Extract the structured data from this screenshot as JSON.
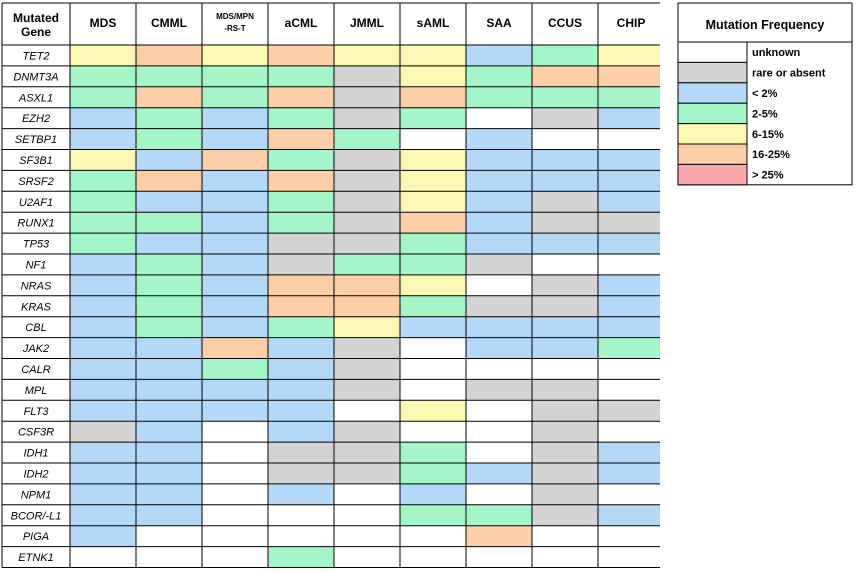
{
  "chart_data": {
    "type": "heatmap",
    "row_header": [
      "Mutated",
      "Gene"
    ],
    "columns": [
      {
        "label": [
          "MDS"
        ]
      },
      {
        "label": [
          "CMML"
        ]
      },
      {
        "label": [
          "MDS/MPN",
          "-RS-T"
        ]
      },
      {
        "label": [
          "aCML"
        ]
      },
      {
        "label": [
          "JMML"
        ]
      },
      {
        "label": [
          "sAML"
        ]
      },
      {
        "label": [
          "SAA"
        ]
      },
      {
        "label": [
          "CCUS"
        ]
      },
      {
        "label": [
          "CHIP"
        ]
      }
    ],
    "rows": [
      {
        "gene": "TET2",
        "values": [
          5,
          6,
          5,
          6,
          5,
          5,
          3,
          4,
          5
        ]
      },
      {
        "gene": "DNMT3A",
        "values": [
          4,
          4,
          4,
          4,
          2,
          5,
          4,
          6,
          6
        ]
      },
      {
        "gene": "ASXL1",
        "values": [
          4,
          6,
          4,
          6,
          2,
          6,
          4,
          4,
          4
        ]
      },
      {
        "gene": "EZH2",
        "values": [
          3,
          4,
          3,
          4,
          2,
          4,
          1,
          2,
          3
        ]
      },
      {
        "gene": "SETBP1",
        "values": [
          3,
          4,
          3,
          6,
          4,
          1,
          3,
          1,
          1
        ]
      },
      {
        "gene": "SF3B1",
        "values": [
          5,
          3,
          6,
          4,
          2,
          5,
          3,
          3,
          3
        ]
      },
      {
        "gene": "SRSF2",
        "values": [
          4,
          6,
          3,
          6,
          2,
          5,
          3,
          3,
          3
        ]
      },
      {
        "gene": "U2AF1",
        "values": [
          4,
          3,
          3,
          4,
          2,
          5,
          3,
          2,
          3
        ]
      },
      {
        "gene": "RUNX1",
        "values": [
          4,
          4,
          3,
          4,
          2,
          6,
          3,
          2,
          2
        ]
      },
      {
        "gene": "TP53",
        "values": [
          4,
          3,
          3,
          2,
          2,
          4,
          3,
          3,
          3
        ]
      },
      {
        "gene": "NF1",
        "values": [
          3,
          4,
          3,
          2,
          4,
          4,
          2,
          1,
          1
        ]
      },
      {
        "gene": "NRAS",
        "values": [
          3,
          4,
          3,
          6,
          6,
          5,
          1,
          2,
          3
        ]
      },
      {
        "gene": "KRAS",
        "values": [
          3,
          4,
          3,
          6,
          6,
          4,
          2,
          2,
          3
        ]
      },
      {
        "gene": "CBL",
        "values": [
          3,
          4,
          3,
          4,
          5,
          3,
          3,
          3,
          3
        ]
      },
      {
        "gene": "JAK2",
        "values": [
          3,
          3,
          6,
          3,
          2,
          1,
          3,
          3,
          4
        ]
      },
      {
        "gene": "CALR",
        "values": [
          3,
          3,
          4,
          3,
          2,
          1,
          1,
          1,
          1
        ]
      },
      {
        "gene": "MPL",
        "values": [
          3,
          3,
          3,
          3,
          2,
          1,
          2,
          2,
          1
        ]
      },
      {
        "gene": "FLT3",
        "values": [
          3,
          3,
          3,
          3,
          1,
          5,
          1,
          2,
          2
        ]
      },
      {
        "gene": "CSF3R",
        "values": [
          2,
          3,
          1,
          3,
          2,
          1,
          1,
          2,
          1
        ]
      },
      {
        "gene": "IDH1",
        "values": [
          3,
          3,
          1,
          2,
          2,
          4,
          1,
          2,
          3
        ]
      },
      {
        "gene": "IDH2",
        "values": [
          3,
          3,
          1,
          2,
          2,
          4,
          3,
          2,
          3
        ]
      },
      {
        "gene": "NPM1",
        "values": [
          3,
          3,
          1,
          3,
          1,
          3,
          1,
          2,
          1
        ]
      },
      {
        "gene": "BCOR/-L1",
        "values": [
          3,
          3,
          1,
          1,
          1,
          4,
          4,
          2,
          3
        ]
      },
      {
        "gene": "PIGA",
        "values": [
          3,
          1,
          1,
          1,
          1,
          1,
          6,
          1,
          1
        ]
      },
      {
        "gene": "ETNK1",
        "values": [
          1,
          1,
          1,
          4,
          1,
          1,
          1,
          1,
          1
        ]
      }
    ],
    "legend": {
      "title": "Mutation Frequency",
      "items": [
        {
          "level": 1,
          "label": "unknown",
          "color": "#ffffff"
        },
        {
          "level": 2,
          "label": "rare or absent",
          "color": "#d4d4d4"
        },
        {
          "level": 3,
          "label": "< 2%",
          "color": "#b4d9f8"
        },
        {
          "level": 4,
          "label": "2-5%",
          "color": "#a4f5c8"
        },
        {
          "level": 5,
          "label": "6-15%",
          "color": "#fbf8b4"
        },
        {
          "level": 6,
          "label": "16-25%",
          "color": "#fccfa8"
        },
        {
          "level": 7,
          "label": "> 25%",
          "color": "#fba8ac"
        }
      ]
    }
  }
}
